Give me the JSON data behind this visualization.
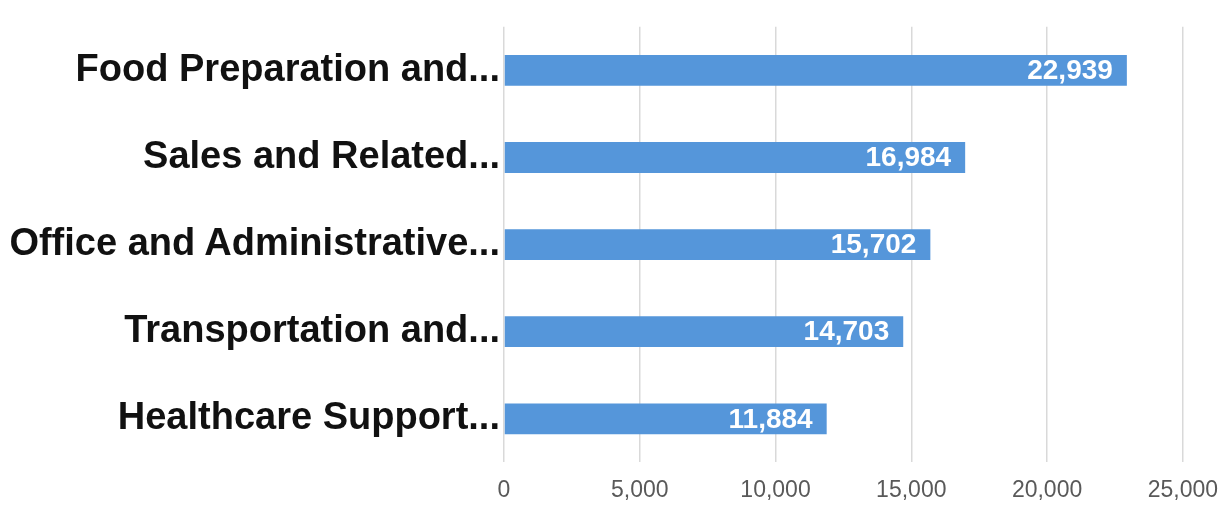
{
  "chart_data": {
    "type": "bar",
    "orientation": "horizontal",
    "categories": [
      "Food Preparation and...",
      "Sales and Related...",
      "Office and Administrative...",
      "Transportation and...",
      "Healthcare Support..."
    ],
    "values": [
      22939,
      16984,
      15702,
      14703,
      11884
    ],
    "value_labels": [
      "22,939",
      "16,984",
      "15,702",
      "14,703",
      "11,884"
    ],
    "color": "#5596da",
    "xlim": [
      0,
      25000
    ],
    "xticks": [
      0,
      {
        "value": 5000,
        "label": "5,000"
      },
      {
        "value": 10000,
        "label": "10,000"
      },
      {
        "value": 15000,
        "label": "15,000"
      },
      {
        "value": 20000,
        "label": "20,000"
      },
      {
        "value": 25000,
        "label": "25,000"
      }
    ],
    "grid": "x"
  }
}
